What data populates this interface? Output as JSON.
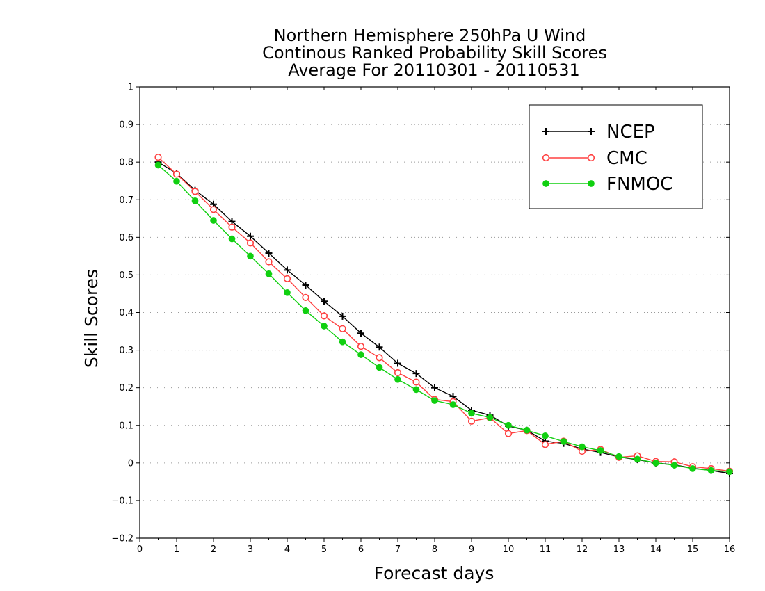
{
  "chart_data": {
    "type": "line",
    "title_lines": [
      "Northern Hemisphere 250hPa U Wind",
      "Continous Ranked Probability Skill Scores",
      "Average For 20110301 - 20110531"
    ],
    "xlabel": "Forecast days",
    "ylabel": "Skill Scores",
    "xlim": [
      0,
      16
    ],
    "ylim": [
      -0.2,
      1
    ],
    "x_ticks": [
      "0",
      "1",
      "2",
      "3",
      "4",
      "5",
      "6",
      "7",
      "8",
      "9",
      "10",
      "11",
      "12",
      "13",
      "14",
      "15",
      "16"
    ],
    "y_ticks": [
      "−0.2",
      "−0.1",
      "0",
      "0.1",
      "0.2",
      "0.3",
      "0.4",
      "0.5",
      "0.6",
      "0.7",
      "0.8",
      "0.9",
      "1"
    ],
    "grid": "horizontal dotted",
    "legend_position": "top-right",
    "x": [
      0.5,
      1,
      1.5,
      2,
      2.5,
      3,
      3.5,
      4,
      4.5,
      5,
      5.5,
      6,
      6.5,
      7,
      7.5,
      8,
      8.5,
      9,
      9.5,
      10,
      10.5,
      11,
      11.5,
      12,
      12.5,
      13,
      13.5,
      14,
      14.5,
      15,
      15.5,
      16
    ],
    "series": [
      {
        "name": "NCEP",
        "color": "#000000",
        "marker": "plus",
        "values": [
          0.8,
          0.77,
          0.725,
          0.688,
          0.642,
          0.603,
          0.558,
          0.513,
          0.473,
          0.43,
          0.39,
          0.345,
          0.308,
          0.265,
          0.238,
          0.2,
          0.177,
          0.14,
          0.127,
          0.098,
          0.087,
          0.058,
          0.052,
          0.037,
          0.028,
          0.016,
          0.009,
          0.0,
          -0.005,
          -0.014,
          -0.02,
          -0.028
        ]
      },
      {
        "name": "CMC",
        "color": "#ff4040",
        "marker": "open-circle",
        "values": [
          0.813,
          0.768,
          0.722,
          0.674,
          0.627,
          0.585,
          0.535,
          0.49,
          0.44,
          0.391,
          0.357,
          0.31,
          0.28,
          0.24,
          0.215,
          0.169,
          0.163,
          0.111,
          0.12,
          0.078,
          0.086,
          0.049,
          0.058,
          0.031,
          0.036,
          0.015,
          0.019,
          0.004,
          0.003,
          -0.01,
          -0.015,
          -0.022
        ]
      },
      {
        "name": "FNMOC",
        "color": "#10d010",
        "marker": "filled-circle",
        "values": [
          0.792,
          0.749,
          0.697,
          0.645,
          0.596,
          0.55,
          0.503,
          0.453,
          0.405,
          0.364,
          0.322,
          0.288,
          0.254,
          0.222,
          0.195,
          0.166,
          0.155,
          0.132,
          0.121,
          0.1,
          0.087,
          0.072,
          0.057,
          0.043,
          0.033,
          0.017,
          0.01,
          0.0,
          -0.006,
          -0.015,
          -0.02,
          -0.023
        ]
      }
    ]
  }
}
